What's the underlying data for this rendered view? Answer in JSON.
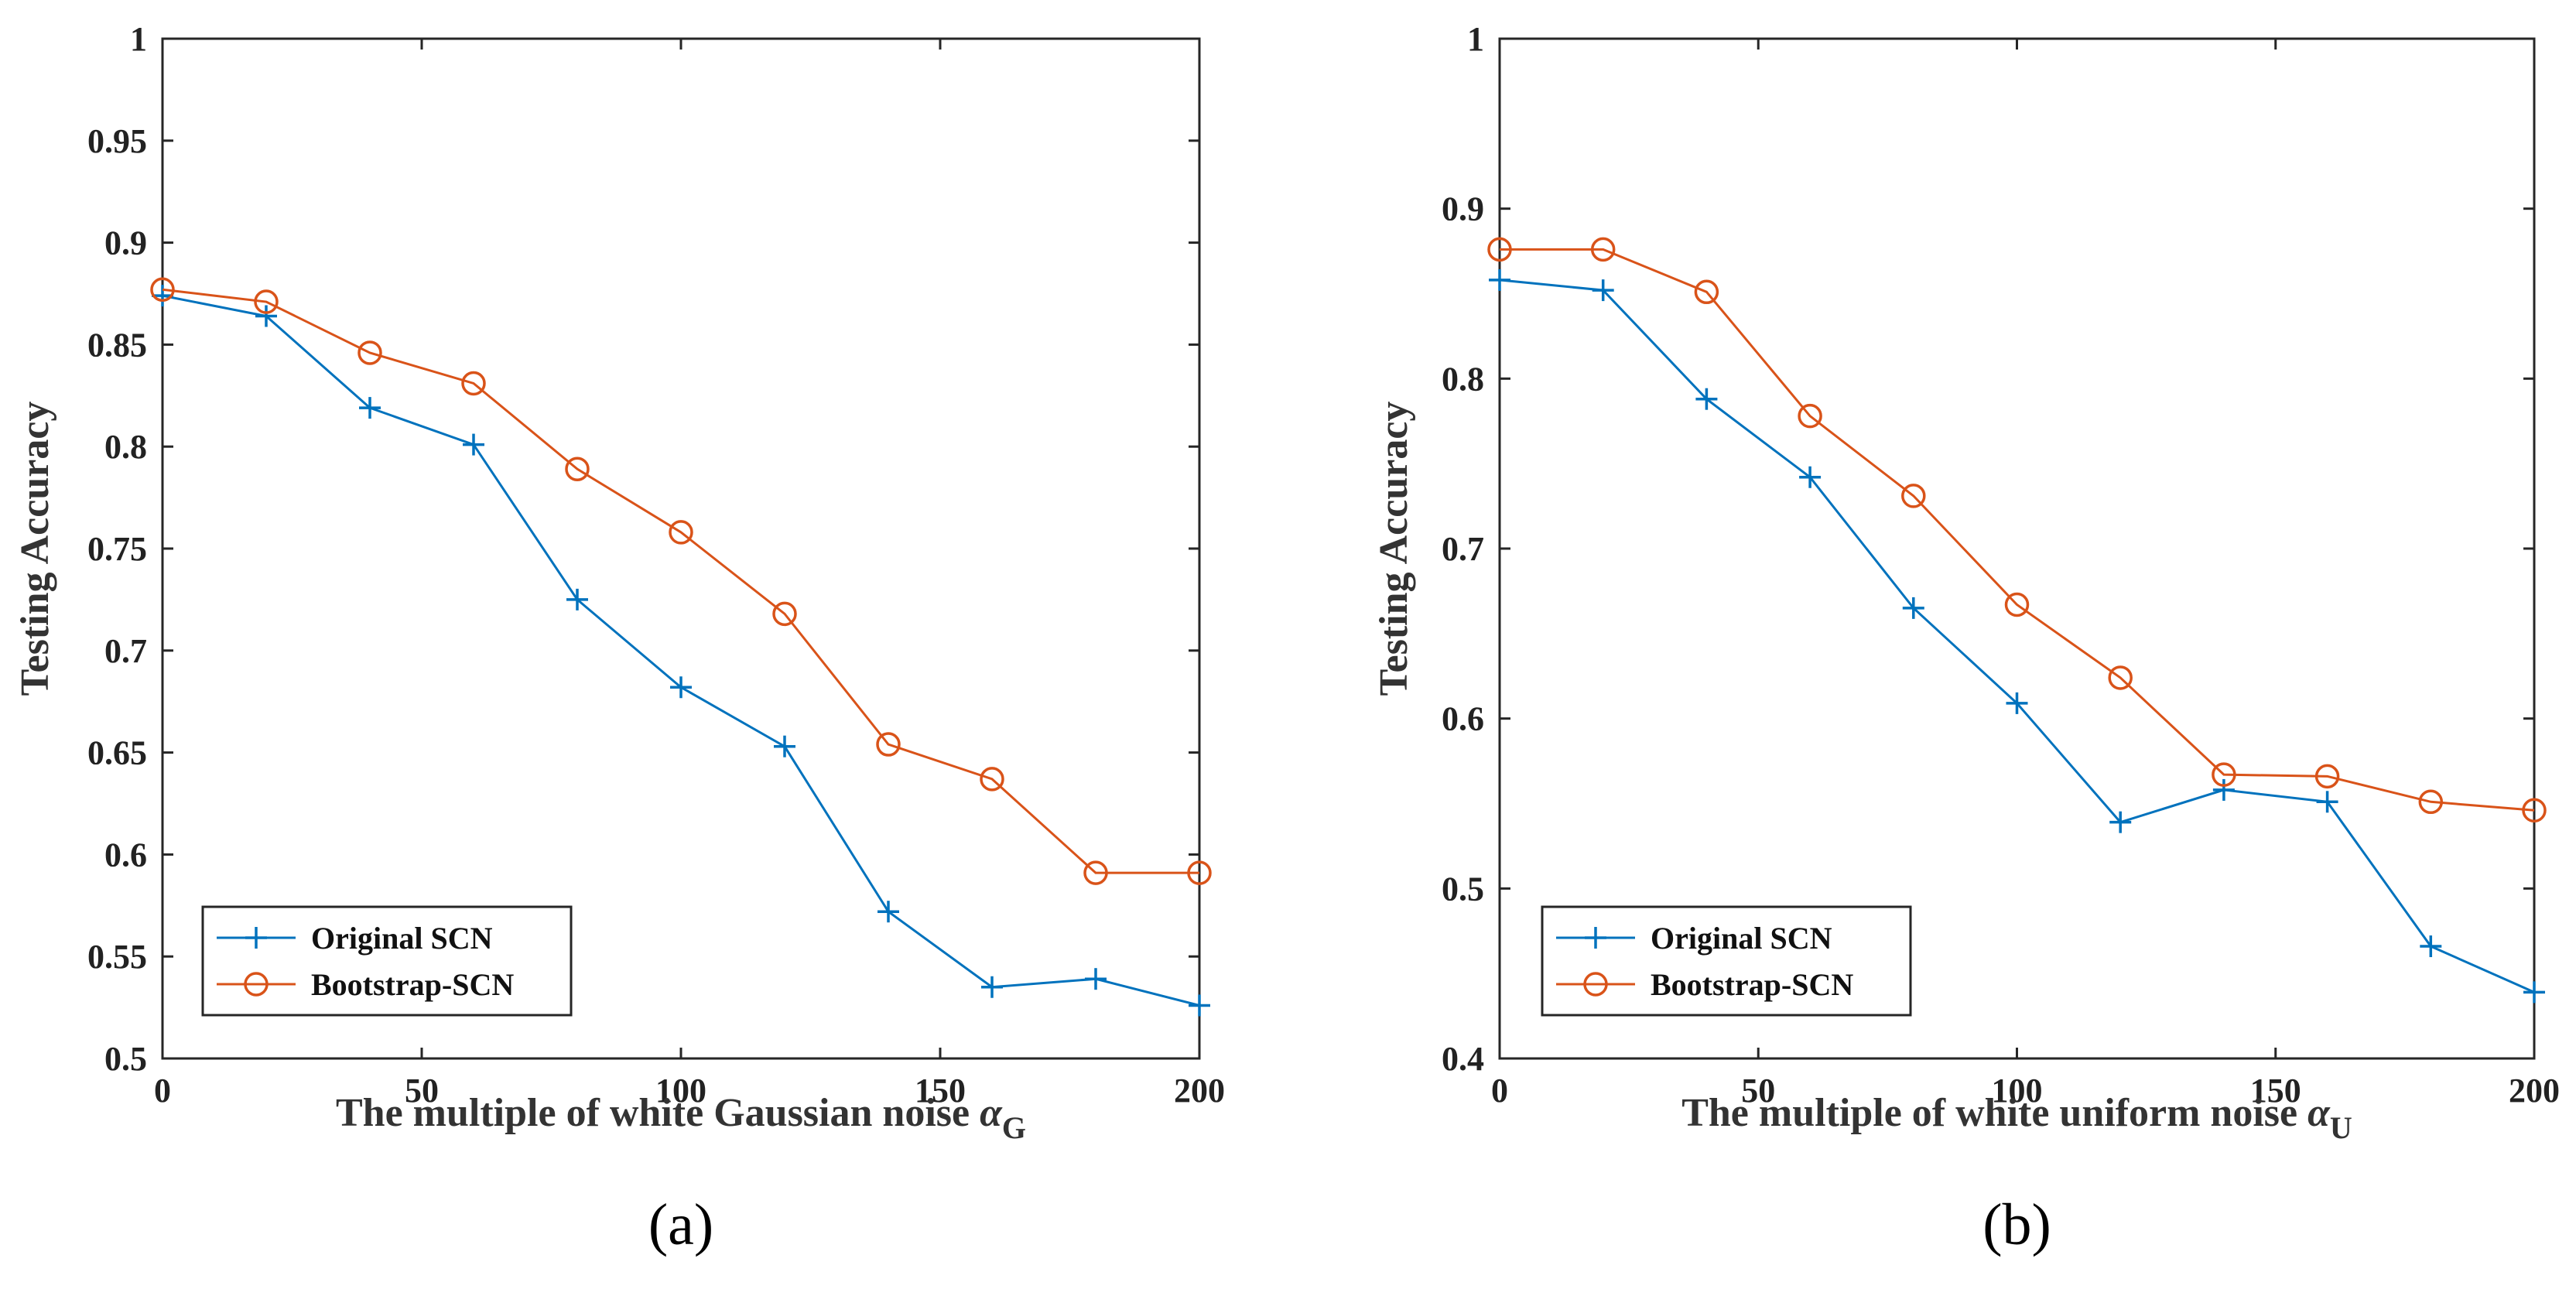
{
  "chart_data": [
    {
      "type": "line",
      "panel_label": "(a)",
      "xlabel": "The multiple of white Gaussian noise",
      "xlabel_symbol": "α",
      "xlabel_subscript": "G",
      "ylabel": "Testing Accuracy",
      "x": [
        0,
        20,
        40,
        60,
        80,
        100,
        120,
        140,
        160,
        180,
        200
      ],
      "xlim": [
        0,
        200
      ],
      "ylim": [
        0.5,
        1
      ],
      "xticks": [
        0,
        50,
        100,
        150,
        200
      ],
      "xtick_labels": [
        "0",
        "50",
        "100",
        "150",
        "200"
      ],
      "yticks": [
        0.5,
        0.55,
        0.6,
        0.65,
        0.7,
        0.75,
        0.8,
        0.85,
        0.9,
        0.95,
        1
      ],
      "ytick_labels": [
        "0.5",
        "0.55",
        "0.6",
        "0.65",
        "0.7",
        "0.75",
        "0.8",
        "0.85",
        "0.9",
        "0.95",
        "1"
      ],
      "legend_position": "bottom-left",
      "series": [
        {
          "name": "Original SCN",
          "marker": "plus",
          "color": "#0072BD",
          "values": [
            0.874,
            0.864,
            0.819,
            0.801,
            0.725,
            0.682,
            0.653,
            0.572,
            0.535,
            0.539,
            0.526
          ]
        },
        {
          "name": "Bootstrap-SCN",
          "marker": "circle",
          "color": "#D95319",
          "values": [
            0.877,
            0.871,
            0.846,
            0.831,
            0.789,
            0.758,
            0.718,
            0.654,
            0.637,
            0.591,
            0.591
          ]
        }
      ]
    },
    {
      "type": "line",
      "panel_label": "(b)",
      "xlabel": "The multiple of white uniform noise",
      "xlabel_symbol": "α",
      "xlabel_subscript": "U",
      "ylabel": "Testing Accuracy",
      "x": [
        0,
        20,
        40,
        60,
        80,
        100,
        120,
        140,
        160,
        180,
        200
      ],
      "xlim": [
        0,
        200
      ],
      "ylim": [
        0.4,
        1
      ],
      "xticks": [
        0,
        50,
        100,
        150,
        200
      ],
      "xtick_labels": [
        "0",
        "50",
        "100",
        "150",
        "200"
      ],
      "yticks": [
        0.4,
        0.5,
        0.6,
        0.7,
        0.8,
        0.9,
        1
      ],
      "ytick_labels": [
        "0.4",
        "0.5",
        "0.6",
        "0.7",
        "0.8",
        "0.9",
        "1"
      ],
      "legend_position": "bottom-left",
      "series": [
        {
          "name": "Original SCN",
          "marker": "plus",
          "color": "#0072BD",
          "values": [
            0.858,
            0.852,
            0.788,
            0.742,
            0.665,
            0.609,
            0.539,
            0.558,
            0.551,
            0.466,
            0.439
          ]
        },
        {
          "name": "Bootstrap-SCN",
          "marker": "circle",
          "color": "#D95319",
          "values": [
            0.876,
            0.876,
            0.851,
            0.778,
            0.731,
            0.667,
            0.624,
            0.567,
            0.566,
            0.551,
            0.546
          ]
        }
      ]
    }
  ]
}
